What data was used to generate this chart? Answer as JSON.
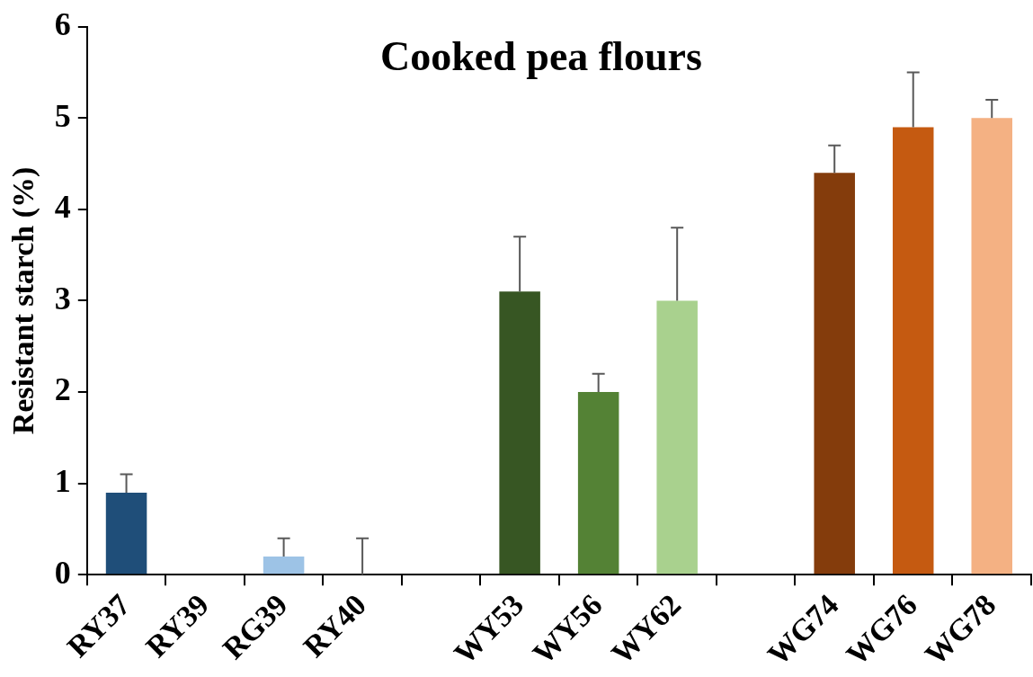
{
  "chart_data": {
    "type": "bar",
    "title": "Cooked pea flours",
    "ylabel": "Resistant starch (%)",
    "categories": [
      "RY37",
      "RY39",
      "RG39",
      "RY40",
      null,
      "WY53",
      "WY56",
      "WY62",
      null,
      "WG74",
      "WG76",
      "WG78"
    ],
    "values": [
      0.9,
      0,
      0.2,
      0,
      null,
      3.1,
      2.0,
      3.0,
      null,
      4.4,
      4.9,
      5.0
    ],
    "colors": [
      "#1f4e79",
      "#2e75b6",
      "#9dc3e6",
      "#5b9bd5",
      "#000000",
      "#375623",
      "#548235",
      "#a9d18e",
      "#000000",
      "#843c0c",
      "#c55a11",
      "#f4b183"
    ],
    "errors": [
      [
        0.9,
        1.1
      ],
      null,
      [
        0.2,
        0.4
      ],
      [
        0,
        0.4
      ],
      null,
      [
        3.1,
        3.7
      ],
      [
        2.0,
        2.2
      ],
      [
        3.0,
        3.8
      ],
      null,
      [
        4.4,
        4.7
      ],
      [
        4.9,
        5.5
      ],
      [
        5.0,
        5.2
      ]
    ],
    "ylim": [
      0,
      6
    ],
    "yticks": [
      0,
      1,
      2,
      3,
      4,
      5,
      6
    ],
    "grid": false,
    "legend": false
  }
}
